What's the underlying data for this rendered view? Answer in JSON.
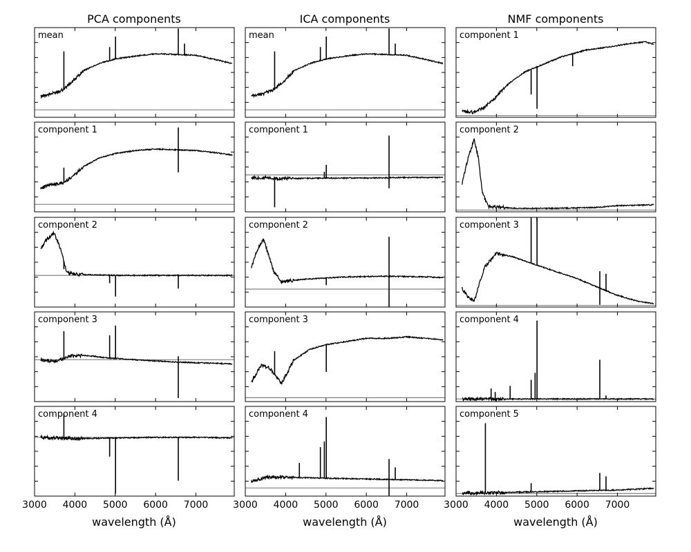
{
  "figure": {
    "columns": [
      {
        "title": "PCA components",
        "panels": [
          "mean",
          "component 1",
          "component 2",
          "component 3",
          "component 4"
        ]
      },
      {
        "title": "ICA components",
        "panels": [
          "mean",
          "component 1",
          "component 2",
          "component 3",
          "component 4"
        ]
      },
      {
        "title": "NMF components",
        "panels": [
          "component 1",
          "component 2",
          "component 3",
          "component 4",
          "component 5"
        ]
      }
    ],
    "xlabel": "wavelength (Å)",
    "xticks": [
      "3000",
      "4000",
      "5000",
      "6000",
      "7000"
    ]
  },
  "chart_data": {
    "type": "line",
    "x_range": [
      3000,
      7950
    ],
    "x_ticks": [
      3000,
      4000,
      5000,
      6000,
      7000
    ],
    "y_tick_labels": "none",
    "baseline": "gray horizontal zero line in every panel",
    "colors": {
      "spectrum": "#000000",
      "zero_line": "#808080"
    },
    "series": [
      {
        "method": "PCA",
        "panel": "mean",
        "shape": {
          "cont": [
            [
              3150,
              0.18
            ],
            [
              3450,
              0.22
            ],
            [
              3700,
              0.27
            ],
            [
              3950,
              0.38
            ],
            [
              4200,
              0.52
            ],
            [
              4600,
              0.62
            ],
            [
              5000,
              0.68
            ],
            [
              5500,
              0.72
            ],
            [
              6000,
              0.75
            ],
            [
              6500,
              0.74
            ],
            [
              7000,
              0.73
            ],
            [
              7500,
              0.67
            ],
            [
              7900,
              0.62
            ]
          ],
          "lines": [
            [
              3727,
              0.5
            ],
            [
              4861,
              0.18
            ],
            [
              5007,
              0.3
            ],
            [
              6563,
              0.35
            ],
            [
              6717,
              0.15
            ]
          ],
          "ymin": -0.1,
          "ymax": 1.1
        }
      },
      {
        "method": "PCA",
        "panel": "component 1",
        "shape": {
          "cont": [
            [
              3150,
              0.22
            ],
            [
              3450,
              0.27
            ],
            [
              3700,
              0.28
            ],
            [
              3950,
              0.38
            ],
            [
              4200,
              0.5
            ],
            [
              4600,
              0.62
            ],
            [
              5000,
              0.68
            ],
            [
              5500,
              0.72
            ],
            [
              6000,
              0.74
            ],
            [
              6500,
              0.73
            ],
            [
              7000,
              0.72
            ],
            [
              7500,
              0.69
            ],
            [
              7900,
              0.66
            ]
          ],
          "lines": [
            [
              3727,
              0.2
            ],
            [
              6563,
              -0.3
            ],
            [
              6563,
              0.3
            ]
          ],
          "ymin": -0.1,
          "ymax": 1.1
        }
      },
      {
        "method": "PCA",
        "panel": "component 2",
        "shape": {
          "cont": [
            [
              3150,
              0.5
            ],
            [
              3300,
              0.68
            ],
            [
              3480,
              0.8
            ],
            [
              3650,
              0.5
            ],
            [
              3800,
              0.05
            ],
            [
              4000,
              0.02
            ],
            [
              5000,
              0.0
            ],
            [
              6000,
              0.0
            ],
            [
              7000,
              0.0
            ],
            [
              7900,
              0.0
            ]
          ],
          "lines": [
            [
              3727,
              -0.15
            ],
            [
              4861,
              -0.15
            ],
            [
              5007,
              -0.4
            ],
            [
              6563,
              -0.25
            ]
          ],
          "ymin": -0.6,
          "ymax": 1.1
        }
      },
      {
        "method": "PCA",
        "panel": "component 3",
        "shape": {
          "cont": [
            [
              3150,
              0.0
            ],
            [
              3500,
              -0.03
            ],
            [
              3900,
              0.07
            ],
            [
              4300,
              0.07
            ],
            [
              4800,
              0.03
            ],
            [
              5500,
              0.0
            ],
            [
              6500,
              -0.04
            ],
            [
              7500,
              -0.06
            ],
            [
              7900,
              -0.07
            ]
          ],
          "lines": [
            [
              3727,
              0.45
            ],
            [
              4861,
              0.38
            ],
            [
              5007,
              0.55
            ],
            [
              6563,
              -0.6
            ],
            [
              6563,
              0.1
            ]
          ],
          "ymin": -0.7,
          "ymax": 0.8
        }
      },
      {
        "method": "PCA",
        "panel": "component 4",
        "shape": {
          "cont": [
            [
              3150,
              0.0
            ],
            [
              4000,
              -0.02
            ],
            [
              5000,
              -0.01
            ],
            [
              6000,
              0.0
            ],
            [
              7000,
              0.0
            ],
            [
              7900,
              -0.01
            ]
          ],
          "lines": [
            [
              3727,
              0.4
            ],
            [
              4861,
              -0.3
            ],
            [
              5007,
              -0.9
            ],
            [
              6563,
              -0.7
            ]
          ],
          "ymin": -0.95,
          "ymax": 0.5
        }
      },
      {
        "method": "ICA",
        "panel": "mean",
        "shape": {
          "cont": [
            [
              3150,
              0.18
            ],
            [
              3450,
              0.22
            ],
            [
              3700,
              0.27
            ],
            [
              3950,
              0.38
            ],
            [
              4200,
              0.52
            ],
            [
              4600,
              0.62
            ],
            [
              5000,
              0.68
            ],
            [
              5500,
              0.72
            ],
            [
              6000,
              0.75
            ],
            [
              6500,
              0.74
            ],
            [
              7000,
              0.73
            ],
            [
              7500,
              0.67
            ],
            [
              7900,
              0.62
            ]
          ],
          "lines": [
            [
              3727,
              0.5
            ],
            [
              4861,
              0.18
            ],
            [
              5007,
              0.3
            ],
            [
              6563,
              0.35
            ],
            [
              6717,
              0.15
            ]
          ],
          "ymin": -0.1,
          "ymax": 1.1
        }
      },
      {
        "method": "ICA",
        "panel": "component 1",
        "shape": {
          "cont": [
            [
              3150,
              -0.05
            ],
            [
              4000,
              -0.07
            ],
            [
              5000,
              -0.06
            ],
            [
              6000,
              -0.06
            ],
            [
              7000,
              -0.05
            ],
            [
              7900,
              -0.05
            ]
          ],
          "lines": [
            [
              3727,
              -0.55
            ],
            [
              4959,
              0.12
            ],
            [
              5007,
              0.25
            ],
            [
              6563,
              0.8
            ],
            [
              6563,
              -0.2
            ]
          ],
          "ymin": -0.7,
          "ymax": 1.0
        }
      },
      {
        "method": "ICA",
        "panel": "component 2",
        "shape": {
          "cont": [
            [
              3150,
              0.3
            ],
            [
              3300,
              0.55
            ],
            [
              3450,
              0.7
            ],
            [
              3700,
              0.25
            ],
            [
              3900,
              0.1
            ],
            [
              4500,
              0.14
            ],
            [
              5500,
              0.17
            ],
            [
              6500,
              0.18
            ],
            [
              7500,
              0.17
            ],
            [
              7900,
              0.16
            ]
          ],
          "lines": [
            [
              5007,
              -0.1
            ],
            [
              6563,
              -0.55
            ],
            [
              6563,
              0.55
            ]
          ],
          "ymin": -0.25,
          "ymax": 1.0
        }
      },
      {
        "method": "ICA",
        "panel": "component 3",
        "shape": {
          "cont": [
            [
              3150,
              0.2
            ],
            [
              3400,
              0.42
            ],
            [
              3600,
              0.38
            ],
            [
              3900,
              0.18
            ],
            [
              4200,
              0.48
            ],
            [
              4600,
              0.62
            ],
            [
              5000,
              0.68
            ],
            [
              5500,
              0.72
            ],
            [
              6000,
              0.76
            ],
            [
              6500,
              0.76
            ],
            [
              7000,
              0.78
            ],
            [
              7500,
              0.76
            ],
            [
              7900,
              0.74
            ]
          ],
          "lines": [
            [
              3727,
              0.3
            ],
            [
              5007,
              -0.35
            ]
          ],
          "ymin": -0.05,
          "ymax": 1.1
        }
      },
      {
        "method": "ICA",
        "panel": "component 4",
        "shape": {
          "cont": [
            [
              3150,
              0.08
            ],
            [
              3500,
              0.13
            ],
            [
              4000,
              0.13
            ],
            [
              5000,
              0.12
            ],
            [
              6000,
              0.11
            ],
            [
              7000,
              0.1
            ],
            [
              7900,
              0.09
            ]
          ],
          "lines": [
            [
              4340,
              0.18
            ],
            [
              4861,
              0.38
            ],
            [
              4959,
              0.45
            ],
            [
              5007,
              0.75
            ],
            [
              6563,
              -0.2
            ],
            [
              6563,
              0.25
            ],
            [
              6717,
              0.15
            ]
          ],
          "ymin": -0.1,
          "ymax": 1.0
        }
      },
      {
        "method": "NMF",
        "panel": "component 1",
        "shape": {
          "cont": [
            [
              3150,
              0.05
            ],
            [
              3450,
              0.04
            ],
            [
              3700,
              0.1
            ],
            [
              3950,
              0.2
            ],
            [
              4300,
              0.38
            ],
            [
              4700,
              0.52
            ],
            [
              5100,
              0.6
            ],
            [
              5600,
              0.7
            ],
            [
              6200,
              0.78
            ],
            [
              6800,
              0.82
            ],
            [
              7300,
              0.86
            ],
            [
              7700,
              0.88
            ],
            [
              7900,
              0.85
            ]
          ],
          "lines": [
            [
              4861,
              -0.3
            ],
            [
              5007,
              -0.5
            ],
            [
              5890,
              -0.15
            ]
          ],
          "ymin": -0.02,
          "ymax": 1.05
        }
      },
      {
        "method": "NMF",
        "panel": "component 2",
        "shape": {
          "cont": [
            [
              3150,
              0.3
            ],
            [
              3300,
              0.6
            ],
            [
              3450,
              0.8
            ],
            [
              3550,
              0.6
            ],
            [
              3650,
              0.2
            ],
            [
              3800,
              0.04
            ],
            [
              4500,
              0.02
            ],
            [
              5500,
              0.02
            ],
            [
              6500,
              0.03
            ],
            [
              7000,
              0.05
            ],
            [
              7900,
              0.06
            ]
          ],
          "lines": [],
          "ymin": -0.02,
          "ymax": 1.0
        }
      },
      {
        "method": "NMF",
        "panel": "component 3",
        "shape": {
          "cont": [
            [
              3150,
              0.2
            ],
            [
              3300,
              0.1
            ],
            [
              3450,
              0.05
            ],
            [
              3700,
              0.45
            ],
            [
              4000,
              0.62
            ],
            [
              4400,
              0.58
            ],
            [
              5000,
              0.48
            ],
            [
              5500,
              0.4
            ],
            [
              6000,
              0.32
            ],
            [
              6500,
              0.22
            ],
            [
              7000,
              0.12
            ],
            [
              7500,
              0.05
            ],
            [
              7900,
              0.02
            ]
          ],
          "lines": [
            [
              4861,
              0.8
            ],
            [
              5007,
              0.8
            ],
            [
              6563,
              -0.2
            ],
            [
              6563,
              0.2
            ],
            [
              6717,
              0.2
            ]
          ],
          "ymin": -0.02,
          "ymax": 1.05
        }
      },
      {
        "method": "NMF",
        "panel": "component 4",
        "shape": {
          "cont": [
            [
              3150,
              0.0
            ],
            [
              4000,
              0.0
            ],
            [
              5000,
              0.0
            ],
            [
              6000,
              0.0
            ],
            [
              7000,
              0.0
            ],
            [
              7900,
              0.0
            ]
          ],
          "lines": [
            [
              3869,
              0.12
            ],
            [
              3970,
              0.08
            ],
            [
              4340,
              0.15
            ],
            [
              4861,
              0.22
            ],
            [
              4959,
              0.3
            ],
            [
              5007,
              0.9
            ],
            [
              6563,
              0.45
            ],
            [
              6717,
              0.04
            ]
          ],
          "ymin": -0.03,
          "ymax": 1.0
        }
      },
      {
        "method": "NMF",
        "panel": "component 5",
        "shape": {
          "cont": [
            [
              3150,
              0.0
            ],
            [
              4000,
              0.01
            ],
            [
              5000,
              0.02
            ],
            [
              6000,
              0.03
            ],
            [
              7000,
              0.04
            ],
            [
              7900,
              0.06
            ]
          ],
          "lines": [
            [
              3727,
              0.8
            ],
            [
              4861,
              0.1
            ],
            [
              6563,
              0.2
            ],
            [
              6717,
              0.16
            ]
          ],
          "ymin": -0.03,
          "ymax": 1.0
        }
      }
    ]
  }
}
